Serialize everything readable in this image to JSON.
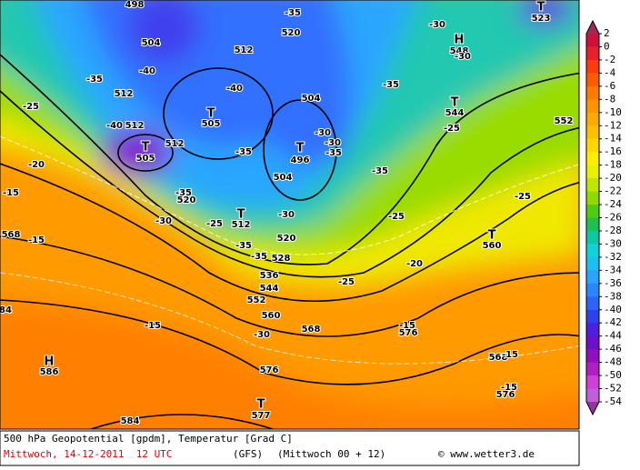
{
  "map": {
    "labels": [
      "498",
      "504",
      "-40",
      "-35",
      "512",
      "-40",
      "512",
      "T",
      "505",
      "512",
      "-20",
      "-25",
      "512",
      "-40",
      "T",
      "505",
      "-35",
      "504",
      "-30",
      "T",
      "496",
      "-30",
      "-35",
      "504",
      "-35",
      "520",
      "-35",
      "-30",
      "-25",
      "T",
      "512",
      "-30",
      "520",
      "-35",
      "-35",
      "528",
      "536",
      "544",
      "552",
      "560",
      "568",
      "-30",
      "576",
      "T",
      "577",
      "584",
      "H",
      "586",
      "-15",
      "-15",
      "-15",
      "568",
      "-25",
      "-20",
      "-25",
      "-15",
      "576",
      "568",
      "-15",
      "576",
      "-15",
      "T",
      "560",
      "-25",
      "552",
      "T",
      "544",
      "-25",
      "H",
      "548",
      "-30",
      "-30",
      "T",
      "523",
      "-35",
      "520",
      "-35",
      "84"
    ]
  },
  "colorbar": {
    "ticks": [
      2,
      0,
      -2,
      -4,
      -6,
      -8,
      -10,
      -12,
      -14,
      -16,
      -18,
      -20,
      -22,
      -24,
      -26,
      -28,
      -30,
      -32,
      -34,
      -36,
      -38,
      -40,
      -42,
      -44,
      -46,
      -48,
      -50,
      -52,
      -54
    ],
    "colors": [
      "#d0103c",
      "#e8202a",
      "#ff3a10",
      "#ff5c00",
      "#ff7a00",
      "#ff9400",
      "#ffaa00",
      "#ffc000",
      "#ffd800",
      "#ffee00",
      "#e8f000",
      "#c0e600",
      "#90da00",
      "#50cc10",
      "#20c050",
      "#10c8a0",
      "#10d2d8",
      "#20bcf4",
      "#2ca2ff",
      "#2c84ff",
      "#2c64f8",
      "#3040ec",
      "#4c20dc",
      "#6c10cc",
      "#9010c0",
      "#b020c0",
      "#d040d8",
      "#c060d8"
    ],
    "over_color": "#a0285a",
    "under_color": "#9830a0"
  },
  "footer": {
    "title": "500 hPa Geopotential [gpdm], Temperatur [Grad C]",
    "date": "Mittwoch, 14-12-2011  12 UTC",
    "model": "(GFS)",
    "run": "(Mittwoch 00 + 12)",
    "credit": "© www.wetter3.de"
  }
}
